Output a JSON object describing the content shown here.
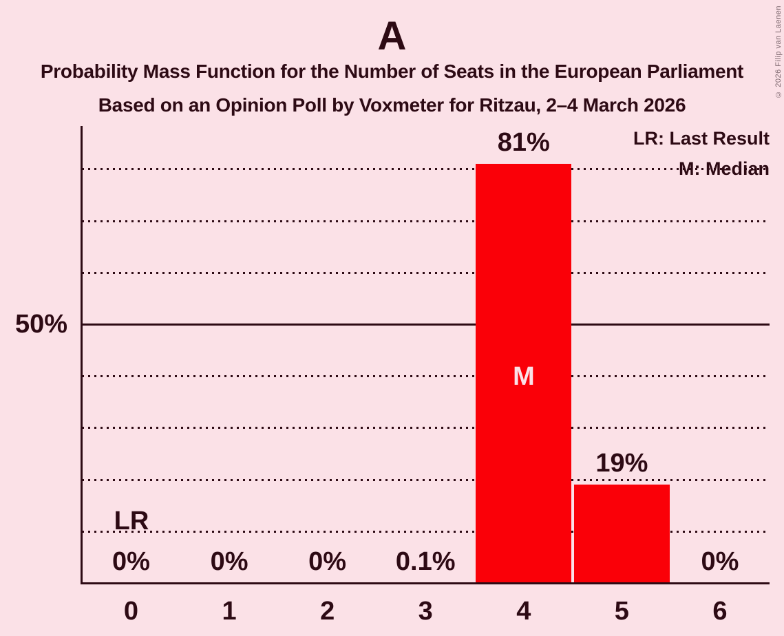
{
  "title": "A",
  "subtitle1": "Probability Mass Function for the Number of Seats in the European Parliament",
  "subtitle2": "Based on an Opinion Poll by Voxmeter for Ritzau, 2–4 March 2026",
  "copyright": "© 2026 Filip van Laenen",
  "legend": {
    "lr": "LR: Last Result",
    "m": "M: Median"
  },
  "y_axis": {
    "label_50": "50%"
  },
  "annotations": {
    "last_result_label": "LR",
    "median_label": "M"
  },
  "colors": {
    "background": "#FBE1E7",
    "bar": "#FA0008",
    "text": "#2D0A14",
    "copyright_text": "#7C666D",
    "median_text": "#FBE1E7"
  },
  "chart_data": {
    "type": "bar",
    "title": "A",
    "categories": [
      "0",
      "1",
      "2",
      "3",
      "4",
      "5",
      "6"
    ],
    "values": [
      0,
      0,
      0,
      0.1,
      81,
      19,
      0
    ],
    "value_labels": [
      "0%",
      "0%",
      "0%",
      "0.1%",
      "81%",
      "19%",
      "0%"
    ],
    "ylim": [
      0,
      88
    ],
    "y_gridlines_pct": [
      10,
      20,
      30,
      40,
      50,
      60,
      70,
      80
    ],
    "solid_gridline_pct": 50,
    "grid_style": "dotted",
    "median_category": "4",
    "last_result_category": "0",
    "legend_position": "top-right"
  }
}
